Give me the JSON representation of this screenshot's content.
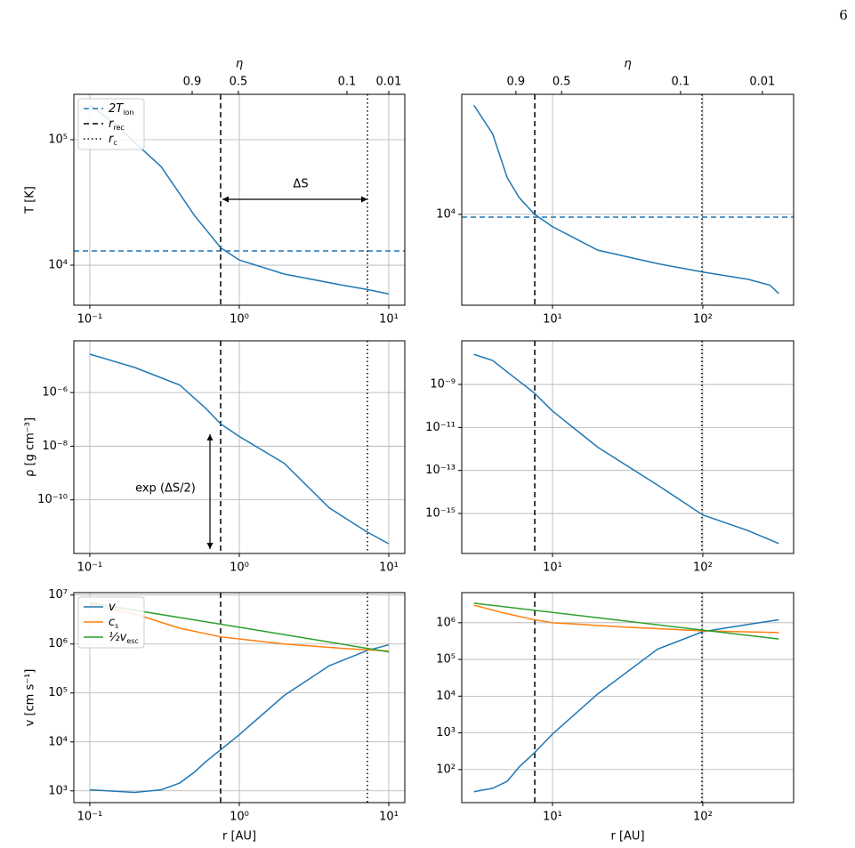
{
  "page_number": "6",
  "chart_data": [
    {
      "type": "line",
      "xscale": "log",
      "yscale": "log",
      "grid": true,
      "xlim": [
        0.0782,
        12.8
      ],
      "ylim": [
        4800,
        230000
      ],
      "xticks": [
        {
          "value": 0.1,
          "label": "10⁻¹"
        },
        {
          "value": 1,
          "label": "10⁰"
        },
        {
          "value": 10,
          "label": "10¹"
        }
      ],
      "yticks": [
        {
          "value": 10000,
          "label": "10⁴"
        },
        {
          "value": 100000,
          "label": "10⁵"
        }
      ],
      "ylabel": "T [K]",
      "x2label": "η",
      "x2ticks": [
        {
          "value": 0.9,
          "x": 0.484
        },
        {
          "value": 0.5,
          "x": 0.986
        },
        {
          "value": 0.1,
          "x": 5.25
        },
        {
          "value": 0.01,
          "x": 10.0
        }
      ],
      "legend": "upper left",
      "hlines": [
        {
          "name": "2T",
          "name_sub": "ion",
          "value": 13000,
          "color": "#1f77b4",
          "style": "dashed"
        }
      ],
      "vlines": [
        {
          "name": "r",
          "name_sub": "rec",
          "value": 0.75,
          "color": "#000000",
          "style": "dashed"
        },
        {
          "name": "r",
          "name_sub": "c",
          "value": 7.2,
          "color": "#000000",
          "style": "dotted"
        }
      ],
      "annotation": "ΔS",
      "series": [
        {
          "color": "#1f77b4",
          "x": [
            0.1,
            0.15,
            0.2,
            0.3,
            0.4,
            0.5,
            0.75,
            1,
            2,
            5,
            7.2,
            10
          ],
          "values": [
            189000,
            132000,
            95000,
            61000,
            37000,
            25000,
            13800,
            11000,
            8500,
            6900,
            6400,
            5900
          ]
        }
      ]
    },
    {
      "type": "line",
      "xscale": "log",
      "yscale": "log",
      "grid": true,
      "xlim": [
        2.49,
        402
      ],
      "ylim": [
        3900,
        34700
      ],
      "xticks": [
        {
          "value": 10,
          "label": "10¹"
        },
        {
          "value": 100,
          "label": "10²"
        }
      ],
      "yticks": [
        {
          "value": 10000,
          "label": "10⁴"
        }
      ],
      "x2label": "η",
      "x2ticks": [
        {
          "value": 0.9,
          "x": 5.71
        },
        {
          "value": 0.5,
          "x": 11.5
        },
        {
          "value": 0.1,
          "x": 71.1
        },
        {
          "value": 0.01,
          "x": 249
        }
      ],
      "hlines": [
        {
          "value": 9720,
          "color": "#1f77b4",
          "style": "dashed"
        }
      ],
      "vlines": [
        {
          "value": 7.62,
          "color": "#000000",
          "style": "dashed"
        },
        {
          "value": 98.6,
          "color": "#000000",
          "style": "dotted"
        }
      ],
      "series": [
        {
          "color": "#1f77b4",
          "x": [
            3,
            4,
            5,
            6,
            7.6,
            10,
            20,
            50,
            100,
            200,
            280,
            320
          ],
          "values": [
            31000,
            23000,
            14600,
            11900,
            10000,
            8800,
            6900,
            6000,
            5500,
            5100,
            4800,
            4400
          ]
        }
      ]
    },
    {
      "type": "line",
      "xscale": "log",
      "yscale": "log",
      "grid": true,
      "xlim": [
        0.0782,
        12.8
      ],
      "ylim": [
        1e-12,
        8.5e-05
      ],
      "xticks": [
        {
          "value": 0.1,
          "label": "10⁻¹"
        },
        {
          "value": 1,
          "label": "10⁰"
        },
        {
          "value": 10,
          "label": "10¹"
        }
      ],
      "yticks": [
        {
          "value": 1e-10,
          "label": "10⁻¹⁰"
        },
        {
          "value": 1e-08,
          "label": "10⁻⁸"
        },
        {
          "value": 1e-06,
          "label": "10⁻⁶"
        }
      ],
      "ylabel": "ρ [g cm⁻³]",
      "annotation": "exp (ΔS/2)",
      "vlines": [
        {
          "value": 0.75,
          "color": "#000000",
          "style": "dashed"
        },
        {
          "value": 7.2,
          "color": "#000000",
          "style": "dotted"
        }
      ],
      "series": [
        {
          "color": "#1f77b4",
          "x": [
            0.1,
            0.2,
            0.4,
            0.6,
            0.75,
            1,
            2,
            4,
            7,
            10
          ],
          "values": [
            2.7e-05,
            8.6e-06,
            1.9e-06,
            2.5e-07,
            6.8e-08,
            2.3e-08,
            2.3e-09,
            5e-11,
            6.8e-12,
            2.3e-12
          ]
        }
      ]
    },
    {
      "type": "line",
      "xscale": "log",
      "yscale": "log",
      "grid": true,
      "xlim": [
        2.49,
        402
      ],
      "ylim": [
        1.38e-17,
        1.07e-07
      ],
      "xticks": [
        {
          "value": 10,
          "label": "10¹"
        },
        {
          "value": 100,
          "label": "10²"
        }
      ],
      "yticks": [
        {
          "value": 1e-15,
          "label": "10⁻¹⁵"
        },
        {
          "value": 1e-13,
          "label": "10⁻¹³"
        },
        {
          "value": 1e-11,
          "label": "10⁻¹¹"
        },
        {
          "value": 1e-09,
          "label": "10⁻⁹"
        }
      ],
      "vlines": [
        {
          "value": 7.62,
          "color": "#000000",
          "style": "dashed"
        },
        {
          "value": 98.6,
          "color": "#000000",
          "style": "dotted"
        }
      ],
      "series": [
        {
          "color": "#1f77b4",
          "x": [
            3,
            4,
            5,
            7.6,
            10,
            20,
            50,
            100,
            200,
            320
          ],
          "values": [
            2.5e-08,
            1.3e-08,
            3.8e-09,
            3.9e-10,
            5.8e-11,
            1.2e-12,
            2.1e-14,
            8.5e-16,
            1.6e-16,
            4e-17
          ]
        }
      ]
    },
    {
      "type": "line",
      "xscale": "log",
      "yscale": "log",
      "grid": true,
      "xlim": [
        0.0782,
        12.8
      ],
      "ylim": [
        575,
        11200000
      ],
      "xticks": [
        {
          "value": 0.1,
          "label": "10⁻¹"
        },
        {
          "value": 1,
          "label": "10⁰"
        },
        {
          "value": 10,
          "label": "10¹"
        }
      ],
      "yticks": [
        {
          "value": 1000,
          "label": "10³"
        },
        {
          "value": 10000,
          "label": "10⁴"
        },
        {
          "value": 100000,
          "label": "10⁵"
        },
        {
          "value": 1000000,
          "label": "10⁶"
        },
        {
          "value": 10000000,
          "label": "10⁷"
        }
      ],
      "xlabel": "r [AU]",
      "ylabel": "v [cm s⁻¹]",
      "legend": "upper left",
      "vlines": [
        {
          "value": 0.75,
          "color": "#000000",
          "style": "dashed"
        },
        {
          "value": 7.2,
          "color": "#000000",
          "style": "dotted"
        }
      ],
      "series": [
        {
          "name": "v",
          "color": "#1f77b4",
          "x": [
            0.1,
            0.2,
            0.3,
            0.4,
            0.5,
            0.6,
            0.75,
            1,
            2,
            4,
            7.2,
            10
          ],
          "values": [
            1050,
            930,
            1050,
            1450,
            2400,
            4000,
            6900,
            14000,
            89000,
            360000,
            740000,
            960000
          ]
        },
        {
          "name": "c",
          "name_sub": "s",
          "color": "#ff7f0e",
          "x": [
            0.1,
            0.2,
            0.4,
            0.75,
            2,
            5,
            10
          ],
          "values": [
            6300000,
            4100000,
            2100000,
            1400000,
            1000000,
            810000,
            720000
          ]
        },
        {
          "name": "½v",
          "name_sub": "esc",
          "color": "#2ca02c",
          "x": [
            0.1,
            1,
            10
          ],
          "values": [
            6900000,
            2200000,
            690000
          ]
        }
      ]
    },
    {
      "type": "line",
      "xscale": "log",
      "yscale": "log",
      "grid": true,
      "xlim": [
        2.49,
        402
      ],
      "ylim": [
        12.6,
        6600000
      ],
      "xticks": [
        {
          "value": 10,
          "label": "10¹"
        },
        {
          "value": 100,
          "label": "10²"
        }
      ],
      "yticks": [
        {
          "value": 100,
          "label": "10²"
        },
        {
          "value": 1000,
          "label": "10³"
        },
        {
          "value": 10000,
          "label": "10⁴"
        },
        {
          "value": 100000,
          "label": "10⁵"
        },
        {
          "value": 1000000,
          "label": "10⁶"
        }
      ],
      "xlabel": "r [AU]",
      "vlines": [
        {
          "value": 7.62,
          "color": "#000000",
          "style": "dashed"
        },
        {
          "value": 98.6,
          "color": "#000000",
          "style": "dotted"
        }
      ],
      "series": [
        {
          "color": "#1f77b4",
          "x": [
            3,
            4,
            5,
            6,
            7.6,
            10,
            20,
            50,
            100,
            200,
            320
          ],
          "values": [
            25,
            31,
            48,
            118,
            290,
            930,
            11500,
            190000,
            570000,
            900000,
            1200000
          ]
        },
        {
          "color": "#ff7f0e",
          "x": [
            3,
            5,
            7.6,
            10,
            30,
            100,
            320
          ],
          "values": [
            3000000,
            1750000,
            1200000,
            1000000,
            760000,
            600000,
            540000
          ]
        },
        {
          "color": "#2ca02c",
          "x": [
            3,
            320
          ],
          "values": [
            3400000,
            360000
          ]
        }
      ]
    }
  ]
}
